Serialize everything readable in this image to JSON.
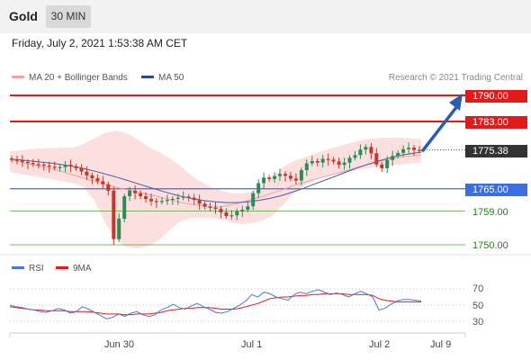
{
  "header": {
    "title": "Gold",
    "timeframe": "30 MIN",
    "datetime": "Friday, July 2, 2021 1:53:38 AM CET"
  },
  "legend": {
    "ma20_label": "MA 20 + Bollinger Bands",
    "ma50_label": "MA 50",
    "credit": "Research © 2021 Trading Central",
    "rsi_label": "RSI",
    "ma9_label": "9MA"
  },
  "colors": {
    "resistance": "#e31a1a",
    "support_strong": "#3b6fe0",
    "support_weak": "#4aa63a",
    "current_price": "#333333",
    "candle_up": "#2e8b57",
    "candle_down": "#c0392b",
    "bollinger_fill": "#fbd5d5",
    "ma20": "#f2a0a0",
    "ma50": "#4a5aa8",
    "rsi": "#4a78d6",
    "rsi_ma": "#e31a1a",
    "arrow": "#2a5db0"
  },
  "levels": {
    "r2": "1790.00",
    "r1": "1783.00",
    "current": "1775.38",
    "s1": "1765.00",
    "s2": "1759.00",
    "s3": "1750.00"
  },
  "rsi_levels": {
    "upper": "70",
    "mid": "50",
    "lower": "30"
  },
  "x_labels": {
    "a": "Jun 30",
    "b": "Jul 1",
    "c": "Jul 2",
    "d": "Jul 9"
  },
  "chart_data": {
    "type": "line",
    "instrument": "Gold",
    "timeframe": "30 MIN",
    "y_range": [
      1748,
      1793
    ],
    "close": [
      1772.8,
      1772.6,
      1772.2,
      1771.9,
      1771.6,
      1771.5,
      1771.2,
      1770.9,
      1770.6,
      1770.8,
      1771.4,
      1771.0,
      1770.5,
      1769.6,
      1768.6,
      1767.8,
      1767.0,
      1766.2,
      1764.5,
      1751.5,
      1757.0,
      1763.0,
      1764.5,
      1763.8,
      1763.0,
      1762.3,
      1761.7,
      1761.5,
      1761.7,
      1762.0,
      1762.3,
      1762.6,
      1762.9,
      1762.6,
      1762.0,
      1761.0,
      1760.2,
      1760.0,
      1759.6,
      1758.7,
      1757.7,
      1757.9,
      1759.0,
      1759.4,
      1760.3,
      1763.8,
      1766.5,
      1768.0,
      1767.6,
      1768.4,
      1769.0,
      1768.5,
      1767.7,
      1767.2,
      1770.0,
      1771.8,
      1772.4,
      1772.0,
      1773.0,
      1772.8,
      1772.3,
      1771.4,
      1772.0,
      1773.3,
      1774.0,
      1775.5,
      1776.2,
      1774.5,
      1771.5,
      1770.5,
      1772.7,
      1773.8,
      1774.6,
      1775.6,
      1776.0,
      1775.4,
      1775.2
    ],
    "ma20": [
      1772.8,
      1772.4,
      1772.0,
      1771.6,
      1771.3,
      1770.9,
      1770.5,
      1770.0,
      1769.5,
      1768.9,
      1768.4,
      1767.8,
      1767.3,
      1766.8,
      1766.3,
      1765.8,
      1765.3,
      1764.9,
      1764.5,
      1764.1,
      1763.7,
      1763.3,
      1762.9,
      1762.4,
      1762.0,
      1761.5,
      1761.1,
      1760.8,
      1760.6,
      1760.4,
      1760.2,
      1760.2,
      1760.4,
      1760.8,
      1761.2,
      1761.7,
      1762.2,
      1762.7,
      1763.3,
      1763.9,
      1764.5,
      1765.1,
      1765.8,
      1766.4,
      1766.9,
      1767.4,
      1767.9,
      1768.4,
      1768.9,
      1769.4,
      1769.9,
      1770.4,
      1770.9,
      1771.4,
      1771.9,
      1772.4,
      1772.8,
      1773.2,
      1773.5,
      1773.7,
      1773.9,
      1774.0
    ],
    "bb_upper": [
      1775.0,
      1775.3,
      1775.6,
      1775.8,
      1775.9,
      1776.0,
      1776.0,
      1777.0,
      1778.5,
      1780.0,
      1780.5,
      1780.0,
      1778.5,
      1776.5,
      1775.0,
      1773.5,
      1771.5,
      1769.0,
      1767.0,
      1765.5,
      1764.5,
      1763.8,
      1763.8,
      1764.3,
      1766.0,
      1768.5,
      1771.0,
      1772.5,
      1773.5,
      1774.5,
      1775.5,
      1776.2,
      1777.0,
      1777.8,
      1778.3,
      1778.6,
      1778.7,
      1778.7,
      1778.5,
      1778.3
    ],
    "bb_lower": [
      1769.5,
      1769.0,
      1768.5,
      1768.0,
      1767.5,
      1767.0,
      1766.5,
      1765.5,
      1762.0,
      1756.0,
      1751.5,
      1749.5,
      1749.0,
      1749.5,
      1751.0,
      1753.5,
      1756.0,
      1757.0,
      1757.3,
      1757.2,
      1756.8,
      1756.0,
      1755.5,
      1755.8,
      1756.5,
      1758.0,
      1761.0,
      1764.0,
      1766.0,
      1767.5,
      1768.5,
      1769.0,
      1769.5,
      1770.0,
      1770.5,
      1771.0,
      1771.3,
      1771.5,
      1771.8,
      1772.0
    ],
    "ma50": [
      1773.0,
      1772.7,
      1772.4,
      1772.1,
      1771.8,
      1771.4,
      1770.9,
      1770.3,
      1769.6,
      1768.8,
      1768.0,
      1767.1,
      1766.2,
      1765.3,
      1764.4,
      1763.6,
      1762.9,
      1762.3,
      1761.8,
      1761.5,
      1761.3,
      1761.3,
      1761.5,
      1761.9,
      1762.4,
      1763.1,
      1764.0,
      1765.0,
      1766.1,
      1767.2,
      1768.3,
      1769.4,
      1770.5,
      1771.5,
      1772.4,
      1773.2,
      1773.9,
      1774.4,
      1774.8
    ],
    "rsi": [
      50,
      48,
      47,
      45,
      44,
      42,
      41,
      43,
      46,
      44,
      40,
      42,
      48,
      45,
      41,
      37,
      33,
      35,
      39,
      36,
      40,
      42,
      38,
      36,
      38,
      44,
      47,
      51,
      47,
      45,
      49,
      52,
      48,
      45,
      41,
      40,
      42,
      46,
      50,
      55,
      63,
      60,
      66,
      64,
      60,
      58,
      56,
      63,
      66,
      64,
      67,
      69,
      66,
      63,
      65,
      63,
      60,
      64,
      67,
      64,
      60,
      44,
      46,
      51,
      55,
      57,
      57,
      56,
      55
    ],
    "rsi_ma": [
      48,
      47,
      46,
      45,
      44,
      44,
      43,
      43,
      43,
      43,
      42,
      42,
      42,
      42,
      41,
      40,
      39,
      39,
      39,
      38,
      38,
      39,
      39,
      39,
      40,
      41,
      43,
      44,
      45,
      46,
      46,
      47,
      47,
      47,
      46,
      45,
      45,
      45,
      46,
      48,
      50,
      52,
      55,
      58,
      59,
      60,
      60,
      61,
      62,
      62,
      63,
      63,
      64,
      64,
      64,
      64,
      63,
      63,
      63,
      63,
      62,
      58,
      56,
      55,
      54,
      54,
      54,
      54,
      54
    ],
    "forecast_target": 1790.0,
    "x_ticks": [
      "Jun 30",
      "Jul 1",
      "Jul 2",
      "Jul 9"
    ]
  }
}
